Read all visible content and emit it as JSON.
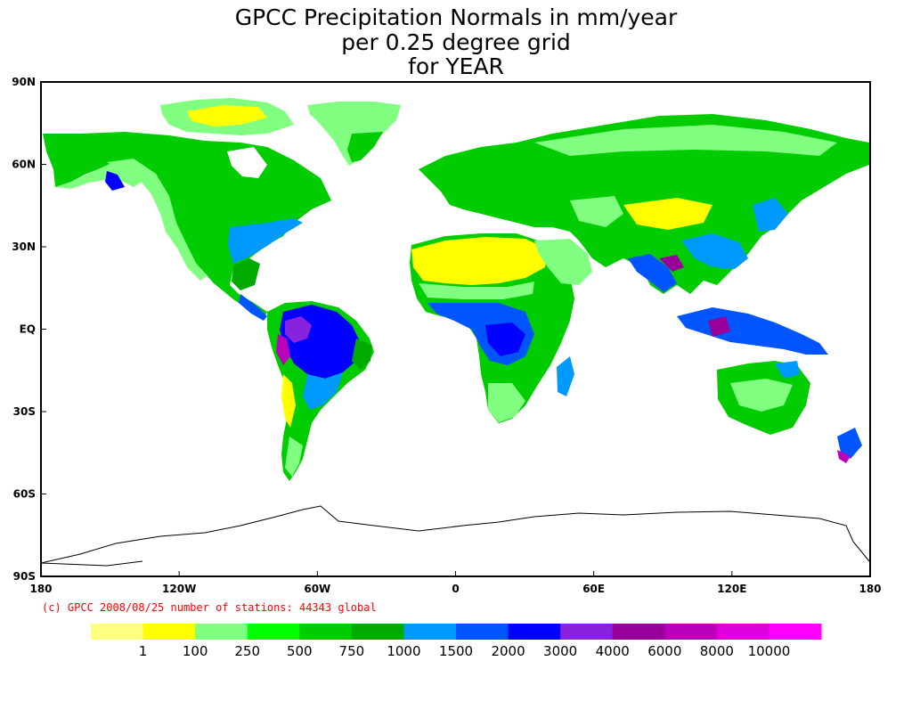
{
  "title_lines": [
    "GPCC Precipitation Normals in mm/year",
    "per 0.25 degree grid",
    "for YEAR"
  ],
  "axes": {
    "lat_labels": [
      "90N",
      "60N",
      "30N",
      "EQ",
      "30S",
      "60S",
      "90S"
    ],
    "lon_labels": [
      "180",
      "120W",
      "60W",
      "0",
      "60E",
      "120E",
      "180"
    ]
  },
  "credit": "(c) GPCC 2008/08/25 number of stations: 44343 global",
  "colors": {
    "credit_text": "#ff0000",
    "frame": "#000000",
    "coastline": "#000000"
  },
  "legend": {
    "swatches": [
      "#ffff80",
      "#ffff00",
      "#80ff80",
      "#00ff00",
      "#00cc00",
      "#00aa00",
      "#0099ff",
      "#0055ff",
      "#0000ff",
      "#8822dd",
      "#990099",
      "#bb00bb",
      "#dd00dd",
      "#ff00ff"
    ],
    "labels": [
      "1",
      "100",
      "250",
      "500",
      "750",
      "1000",
      "1500",
      "2000",
      "3000",
      "4000",
      "6000",
      "8000",
      "10000"
    ]
  },
  "map_data": {
    "type": "choropleth",
    "projection": "equirectangular",
    "variable": "annual precipitation (mm/year)",
    "extent": {
      "lon": [
        -180,
        180
      ],
      "lat": [
        -90,
        90
      ]
    }
  }
}
